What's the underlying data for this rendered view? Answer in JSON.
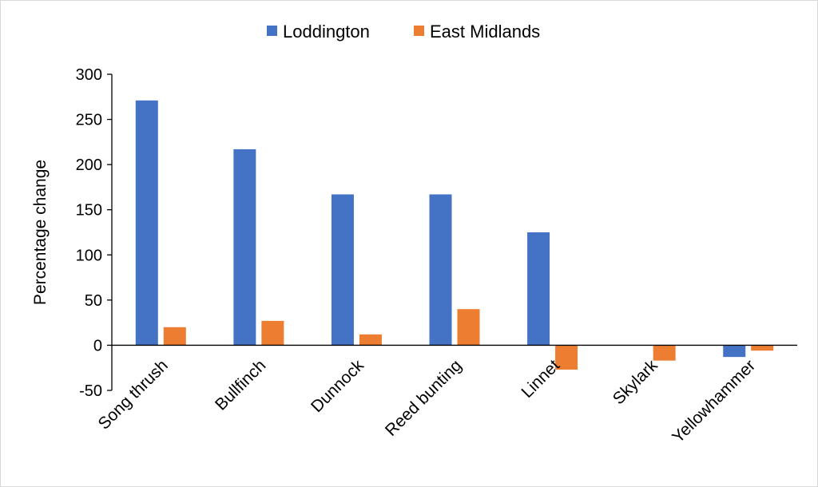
{
  "chart_data": {
    "type": "bar",
    "title": "",
    "xlabel": "",
    "ylabel": "Percentage change",
    "ylim": [
      -50,
      300
    ],
    "yticks": [
      -50,
      0,
      50,
      100,
      150,
      200,
      250,
      300
    ],
    "grid": false,
    "legend_position": "top-center",
    "categories": [
      "Song thrush",
      "Bullfinch",
      "Dunnock",
      "Reed bunting",
      "Linnet",
      "Skylark",
      "Yellowhammer"
    ],
    "series": [
      {
        "name": "Loddington",
        "color": "#4472C4",
        "values": [
          271,
          217,
          167,
          167,
          125,
          0,
          -13
        ]
      },
      {
        "name": "East Midlands",
        "color": "#ED7D31",
        "values": [
          20,
          27,
          12,
          40,
          -27,
          -17,
          -6
        ]
      }
    ]
  }
}
